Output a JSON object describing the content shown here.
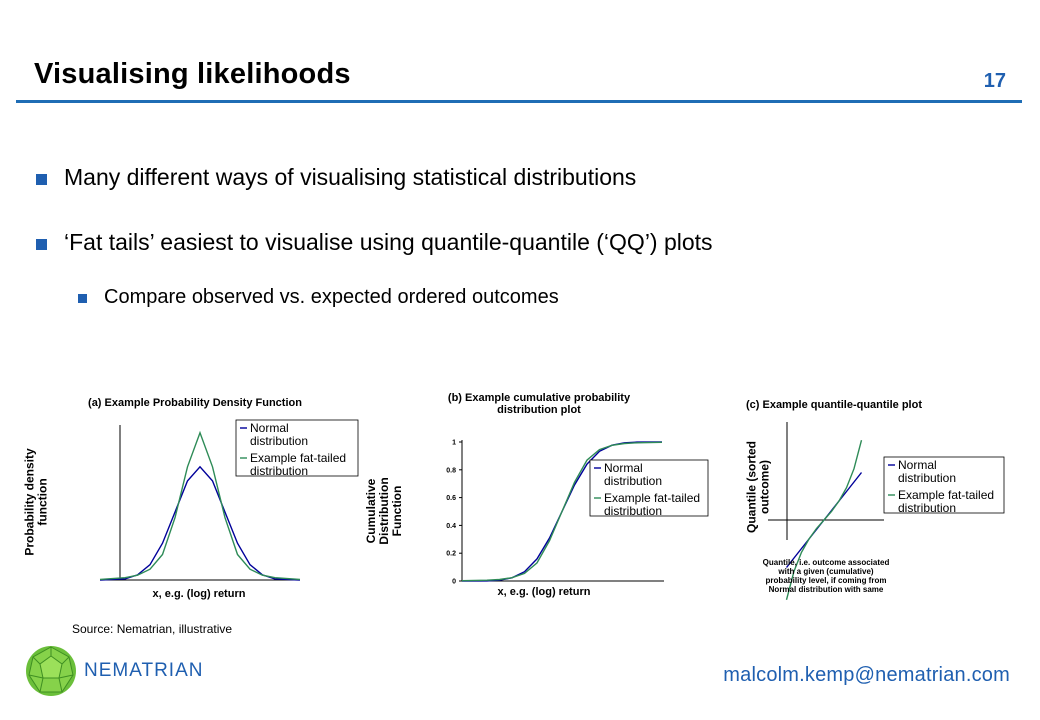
{
  "slide": {
    "title": "Visualising likelihoods",
    "page_number": "17",
    "bullets": [
      "Many different ways of visualising statistical distributions",
      "‘Fat tails’ easiest to visualise using quantile-quantile (‘QQ’) plots"
    ],
    "sub_bullets": [
      "Compare observed vs. expected ordered outcomes"
    ],
    "source": "Source: Nematrian, illustrative",
    "brand": "NEMATRIAN",
    "email": "malcolm.kemp@nematrian.com"
  },
  "colors": {
    "accent": "#1f5fb0",
    "rule": "#1f6db5",
    "normal": "#00009a",
    "fat": "#2e8b57"
  },
  "chart_data": [
    {
      "type": "line",
      "title": "(a) Example Probability Density Function",
      "xlabel": "x, e.g. (log) return",
      "ylabel": "Probability density function",
      "legend": "top-right",
      "series": [
        {
          "name": "Normal distribution",
          "x": [
            -4,
            -3,
            -2.5,
            -2,
            -1.5,
            -1,
            -0.5,
            0,
            0.5,
            1,
            1.5,
            2,
            2.5,
            3,
            4
          ],
          "y": [
            0.0001,
            0.004,
            0.018,
            0.054,
            0.13,
            0.24,
            0.35,
            0.4,
            0.35,
            0.24,
            0.13,
            0.054,
            0.018,
            0.004,
            0.0001
          ]
        },
        {
          "name": "Example fat-tailed distribution",
          "x": [
            -4,
            -3,
            -2.5,
            -2,
            -1.5,
            -1,
            -0.5,
            0,
            0.5,
            1,
            1.5,
            2,
            2.5,
            3,
            4
          ],
          "y": [
            0.002,
            0.008,
            0.017,
            0.038,
            0.09,
            0.22,
            0.4,
            0.52,
            0.4,
            0.22,
            0.09,
            0.038,
            0.017,
            0.008,
            0.002
          ]
        }
      ]
    },
    {
      "type": "line",
      "title": "(b) Example cumulative probability distribution plot",
      "xlabel": "x, e.g. (log) return",
      "ylabel": "Cumulative Distribution Function",
      "yticks": [
        "0",
        "0.2",
        "0.4",
        "0.6",
        "0.8",
        "1"
      ],
      "ylim": [
        0,
        1
      ],
      "legend": "right",
      "series": [
        {
          "name": "Normal distribution",
          "x": [
            -4,
            -3,
            -2.5,
            -2,
            -1.5,
            -1,
            -0.5,
            0,
            0.5,
            1,
            1.5,
            2,
            2.5,
            3,
            4
          ],
          "y": [
            0,
            0.001,
            0.006,
            0.023,
            0.067,
            0.159,
            0.309,
            0.5,
            0.691,
            0.841,
            0.933,
            0.977,
            0.994,
            0.999,
            1
          ]
        },
        {
          "name": "Example fat-tailed distribution",
          "x": [
            -4,
            -3,
            -2.5,
            -2,
            -1.5,
            -1,
            -0.5,
            0,
            0.5,
            1,
            1.5,
            2,
            2.5,
            3,
            4
          ],
          "y": [
            0.002,
            0.006,
            0.011,
            0.024,
            0.055,
            0.13,
            0.29,
            0.5,
            0.71,
            0.87,
            0.945,
            0.976,
            0.989,
            0.994,
            0.998
          ]
        }
      ]
    },
    {
      "type": "line",
      "title": "(c) Example quantile-quantile plot",
      "xlabel": "Quantile, i.e. outcome associated with a given (cumulative) probability level, if coming from Normal distribution with same",
      "ylabel": "Quantile (sorted outcome)",
      "legend": "right",
      "series": [
        {
          "name": "Normal distribution",
          "x": [
            -2.5,
            -1.5,
            -0.5,
            0.5,
            1.5,
            2.5
          ],
          "y": [
            -2.5,
            -1.5,
            -0.5,
            0.5,
            1.5,
            2.5
          ]
        },
        {
          "name": "Example fat-tailed distribution",
          "x": [
            -2.5,
            -2,
            -1.5,
            -1,
            -0.5,
            0,
            0.5,
            1,
            1.5,
            2,
            2.5
          ],
          "y": [
            -4.2,
            -2.7,
            -1.7,
            -1.0,
            -0.45,
            0,
            0.45,
            1.0,
            1.7,
            2.7,
            4.2
          ]
        }
      ]
    }
  ]
}
